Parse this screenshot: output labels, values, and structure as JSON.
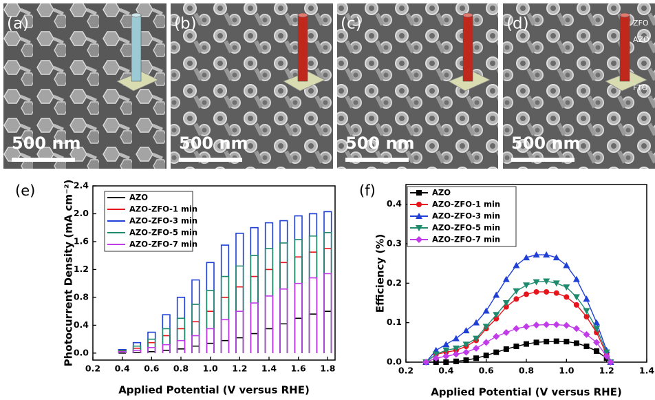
{
  "panels": [
    {
      "label": "(a)",
      "scale_bar": "500 nm"
    },
    {
      "label": "(b)",
      "scale_bar": "500 nm"
    },
    {
      "label": "(c)",
      "scale_bar": "500 nm"
    },
    {
      "label": "(d)",
      "scale_bar": "500 nm",
      "inset_labels": [
        "ZFO",
        "AZO",
        "FTO"
      ]
    }
  ],
  "chart_data": [
    {
      "type": "chopped",
      "label": "(e)",
      "xlabel": "Applied Potential (V versus RHE)",
      "ylabel": "Photocurrent Density (mA cm⁻²)",
      "xlim": [
        0.2,
        1.85
      ],
      "ylim": [
        -0.1,
        2.4
      ],
      "xticks": [
        0.2,
        0.4,
        0.6,
        0.8,
        {
          "value": 1,
          "label": "1.0"
        },
        1.2,
        1.4,
        1.6,
        1.8
      ],
      "yticks": [
        {
          "value": 0,
          "label": "0.0"
        },
        0.4,
        0.8,
        1.2,
        1.6,
        {
          "value": 2,
          "label": "2.0"
        },
        2.4
      ],
      "x": [
        0.4,
        0.5,
        0.6,
        0.7,
        0.8,
        0.9,
        1.0,
        1.1,
        1.2,
        1.3,
        1.4,
        1.5,
        1.6,
        1.7,
        1.8
      ],
      "series": [
        {
          "name": "AZO",
          "color": "#000000",
          "values": [
            0,
            0.01,
            0.02,
            0.04,
            0.06,
            0.1,
            0.14,
            0.18,
            0.22,
            0.28,
            0.35,
            0.42,
            0.5,
            0.56,
            0.6
          ]
        },
        {
          "name": "AZO-ZFO-1 min",
          "color": "#e8141c",
          "values": [
            0.03,
            0.07,
            0.15,
            0.25,
            0.35,
            0.45,
            0.6,
            0.8,
            0.95,
            1.1,
            1.2,
            1.3,
            1.38,
            1.45,
            1.5
          ]
        },
        {
          "name": "AZO-ZFO-3 min",
          "color": "#1f3fd6",
          "values": [
            0.05,
            0.15,
            0.3,
            0.55,
            0.8,
            1.05,
            1.3,
            1.55,
            1.72,
            1.8,
            1.87,
            1.9,
            1.97,
            2.0,
            2.03
          ]
        },
        {
          "name": "AZO-ZFO-5 min",
          "color": "#1e8a6e",
          "values": [
            0.04,
            0.1,
            0.2,
            0.35,
            0.5,
            0.7,
            0.9,
            1.1,
            1.25,
            1.4,
            1.5,
            1.58,
            1.63,
            1.68,
            1.73
          ]
        },
        {
          "name": "AZO-ZFO-7 min",
          "color": "#c13ce8",
          "values": [
            0.02,
            0.04,
            0.08,
            0.12,
            0.18,
            0.25,
            0.35,
            0.48,
            0.6,
            0.72,
            0.82,
            0.92,
            1.0,
            1.08,
            1.14
          ]
        }
      ]
    },
    {
      "type": "line",
      "label": "(f)",
      "xlabel": "Applied Potential (V versus RHE)",
      "ylabel": "Efficiency (%)",
      "xlim": [
        0.2,
        1.4
      ],
      "ylim": [
        0,
        0.45
      ],
      "xticks": [
        0.2,
        0.4,
        0.6,
        0.8,
        {
          "value": 1,
          "label": "1.0"
        },
        1.2,
        1.4
      ],
      "yticks": [
        {
          "value": 0,
          "label": "0.0"
        },
        0.1,
        0.2,
        0.3,
        0.4
      ],
      "x": [
        0.3,
        0.35,
        0.4,
        0.45,
        0.5,
        0.55,
        0.6,
        0.65,
        0.7,
        0.75,
        0.8,
        0.85,
        0.9,
        0.95,
        1.0,
        1.05,
        1.1,
        1.15,
        1.2,
        1.22
      ],
      "series": [
        {
          "name": "AZO",
          "color": "#000000",
          "marker": "square",
          "values": [
            0,
            0,
            0,
            0.002,
            0.005,
            0.01,
            0.017,
            0.025,
            0.033,
            0.04,
            0.046,
            0.05,
            0.052,
            0.053,
            0.052,
            0.048,
            0.04,
            0.028,
            0.01,
            0
          ]
        },
        {
          "name": "AZO-ZFO-1 min",
          "color": "#e8141c",
          "marker": "circle",
          "values": [
            0,
            0.02,
            0.025,
            0.03,
            0.04,
            0.055,
            0.085,
            0.11,
            0.14,
            0.16,
            0.172,
            0.178,
            0.178,
            0.175,
            0.165,
            0.145,
            0.115,
            0.075,
            0.02,
            0
          ]
        },
        {
          "name": "AZO-ZFO-3 min",
          "color": "#1f3fd6",
          "marker": "triangle-up",
          "values": [
            0,
            0.03,
            0.045,
            0.06,
            0.08,
            0.1,
            0.13,
            0.17,
            0.21,
            0.245,
            0.265,
            0.272,
            0.272,
            0.265,
            0.245,
            0.21,
            0.16,
            0.1,
            0.03,
            0
          ]
        },
        {
          "name": "AZO-ZFO-5 min",
          "color": "#1e8a6e",
          "marker": "triangle-down",
          "values": [
            0,
            0.02,
            0.03,
            0.035,
            0.045,
            0.06,
            0.09,
            0.12,
            0.15,
            0.18,
            0.195,
            0.203,
            0.205,
            0.2,
            0.19,
            0.165,
            0.13,
            0.085,
            0.025,
            0
          ]
        },
        {
          "name": "AZO-ZFO-7 min",
          "color": "#c13ce8",
          "marker": "diamond",
          "values": [
            0,
            0.01,
            0.015,
            0.02,
            0.025,
            0.035,
            0.05,
            0.065,
            0.075,
            0.085,
            0.09,
            0.094,
            0.095,
            0.095,
            0.093,
            0.085,
            0.07,
            0.05,
            0.015,
            0
          ]
        }
      ]
    }
  ]
}
